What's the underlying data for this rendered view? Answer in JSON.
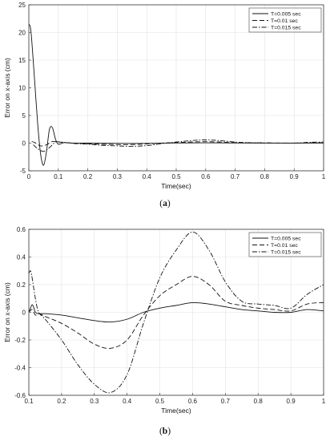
{
  "chart_data": [
    {
      "type": "line",
      "caption_letter": "a",
      "xlabel": "Time(sec)",
      "ylabel": "Error on x-axis (cm)",
      "xlim": [
        0,
        1
      ],
      "ylim": [
        -5,
        25
      ],
      "xticks": [
        "0",
        "0.1",
        "0.2",
        "0.3",
        "0.4",
        "0.5",
        "0.6",
        "0.7",
        "0.8",
        "0.9",
        "1"
      ],
      "yticks": [
        "-5",
        "0",
        "5",
        "10",
        "15",
        "20",
        "25"
      ],
      "grid": true,
      "legend_position": "top-right",
      "series": [
        {
          "name": "T=0.005 sec",
          "style": "solid",
          "x": [
            0,
            0.005,
            0.01,
            0.02,
            0.03,
            0.04,
            0.05,
            0.06,
            0.07,
            0.08,
            0.09,
            0.1,
            0.12,
            0.15,
            0.2,
            0.3,
            0.4,
            0.5,
            0.6,
            0.7,
            0.8,
            0.9,
            1
          ],
          "y": [
            21.5,
            21.0,
            18.5,
            11.0,
            3.5,
            -2.0,
            -4.0,
            -1.5,
            2.5,
            2.8,
            0.8,
            -0.2,
            0.1,
            0.0,
            0.0,
            -0.05,
            -0.05,
            0.02,
            0.06,
            0.02,
            0.01,
            0.0,
            0.01
          ]
        },
        {
          "name": "T=0.01 sec",
          "style": "dash",
          "x": [
            0.01,
            0.02,
            0.04,
            0.06,
            0.08,
            0.1,
            0.15,
            0.2,
            0.25,
            0.3,
            0.35,
            0.4,
            0.45,
            0.5,
            0.55,
            0.6,
            0.65,
            0.7,
            0.75,
            0.8,
            0.9,
            0.95,
            1
          ],
          "y": [
            0.3,
            0.1,
            -0.5,
            -0.3,
            0.3,
            0.2,
            0.0,
            -0.1,
            -0.2,
            -0.25,
            -0.25,
            -0.15,
            0.0,
            0.1,
            0.2,
            0.26,
            0.2,
            0.1,
            0.05,
            0.03,
            0.0,
            0.08,
            0.06
          ]
        },
        {
          "name": "T=0.015 sec",
          "style": "dashdot",
          "x": [
            0.015,
            0.03,
            0.05,
            0.07,
            0.09,
            0.1,
            0.15,
            0.2,
            0.25,
            0.3,
            0.35,
            0.4,
            0.45,
            0.5,
            0.55,
            0.6,
            0.65,
            0.7,
            0.75,
            0.8,
            0.9,
            0.95,
            1
          ],
          "y": [
            -0.3,
            -1.0,
            -1.5,
            -0.8,
            0.2,
            0.25,
            -0.05,
            -0.2,
            -0.4,
            -0.5,
            -0.57,
            -0.45,
            -0.1,
            0.2,
            0.45,
            0.58,
            0.45,
            0.2,
            0.08,
            0.05,
            0.02,
            0.15,
            0.2
          ]
        }
      ]
    },
    {
      "type": "line",
      "caption_letter": "b",
      "xlabel": "Time(sec)",
      "ylabel": "Error on x-axis (cm)",
      "xlim": [
        0.1,
        1
      ],
      "ylim": [
        -0.6,
        0.6
      ],
      "xticks": [
        "0.1",
        "0.2",
        "0.3",
        "0.4",
        "0.5",
        "0.6",
        "0.7",
        "0.8",
        "0.9",
        "1"
      ],
      "yticks": [
        "-0.6",
        "-0.4",
        "-0.2",
        "0",
        "0.2",
        "0.4",
        "0.6"
      ],
      "grid": true,
      "legend_position": "top-right",
      "series": [
        {
          "name": "T=0.005 sec",
          "style": "solid",
          "x": [
            0.1,
            0.105,
            0.11,
            0.115,
            0.12,
            0.13,
            0.15,
            0.2,
            0.25,
            0.3,
            0.35,
            0.4,
            0.45,
            0.5,
            0.55,
            0.6,
            0.65,
            0.7,
            0.75,
            0.8,
            0.85,
            0.9,
            0.95,
            1.0
          ],
          "y": [
            0.0,
            0.03,
            0.055,
            0.035,
            0.0,
            -0.01,
            -0.01,
            -0.02,
            -0.04,
            -0.06,
            -0.07,
            -0.05,
            0.0,
            0.03,
            0.05,
            0.07,
            0.06,
            0.04,
            0.02,
            0.01,
            0.0,
            0.0,
            0.02,
            0.01
          ]
        },
        {
          "name": "T=0.01 sec",
          "style": "dash",
          "x": [
            0.1,
            0.11,
            0.12,
            0.13,
            0.15,
            0.2,
            0.25,
            0.3,
            0.35,
            0.4,
            0.45,
            0.5,
            0.55,
            0.6,
            0.65,
            0.7,
            0.75,
            0.8,
            0.85,
            0.9,
            0.95,
            1.0
          ],
          "y": [
            0.0,
            0.02,
            -0.02,
            -0.01,
            -0.03,
            -0.08,
            -0.15,
            -0.23,
            -0.26,
            -0.2,
            -0.02,
            0.12,
            0.2,
            0.26,
            0.2,
            0.08,
            0.05,
            0.03,
            0.02,
            0.01,
            0.06,
            0.07
          ]
        },
        {
          "name": "T=0.015 sec",
          "style": "dashdot",
          "x": [
            0.1,
            0.105,
            0.11,
            0.12,
            0.13,
            0.15,
            0.2,
            0.25,
            0.3,
            0.35,
            0.4,
            0.45,
            0.5,
            0.55,
            0.6,
            0.65,
            0.7,
            0.75,
            0.8,
            0.85,
            0.9,
            0.95,
            1.0
          ],
          "y": [
            0.28,
            0.3,
            0.25,
            0.1,
            0.0,
            -0.05,
            -0.2,
            -0.38,
            -0.52,
            -0.58,
            -0.45,
            -0.08,
            0.25,
            0.45,
            0.58,
            0.45,
            0.22,
            0.08,
            0.06,
            0.05,
            0.03,
            0.13,
            0.2
          ]
        }
      ]
    }
  ]
}
